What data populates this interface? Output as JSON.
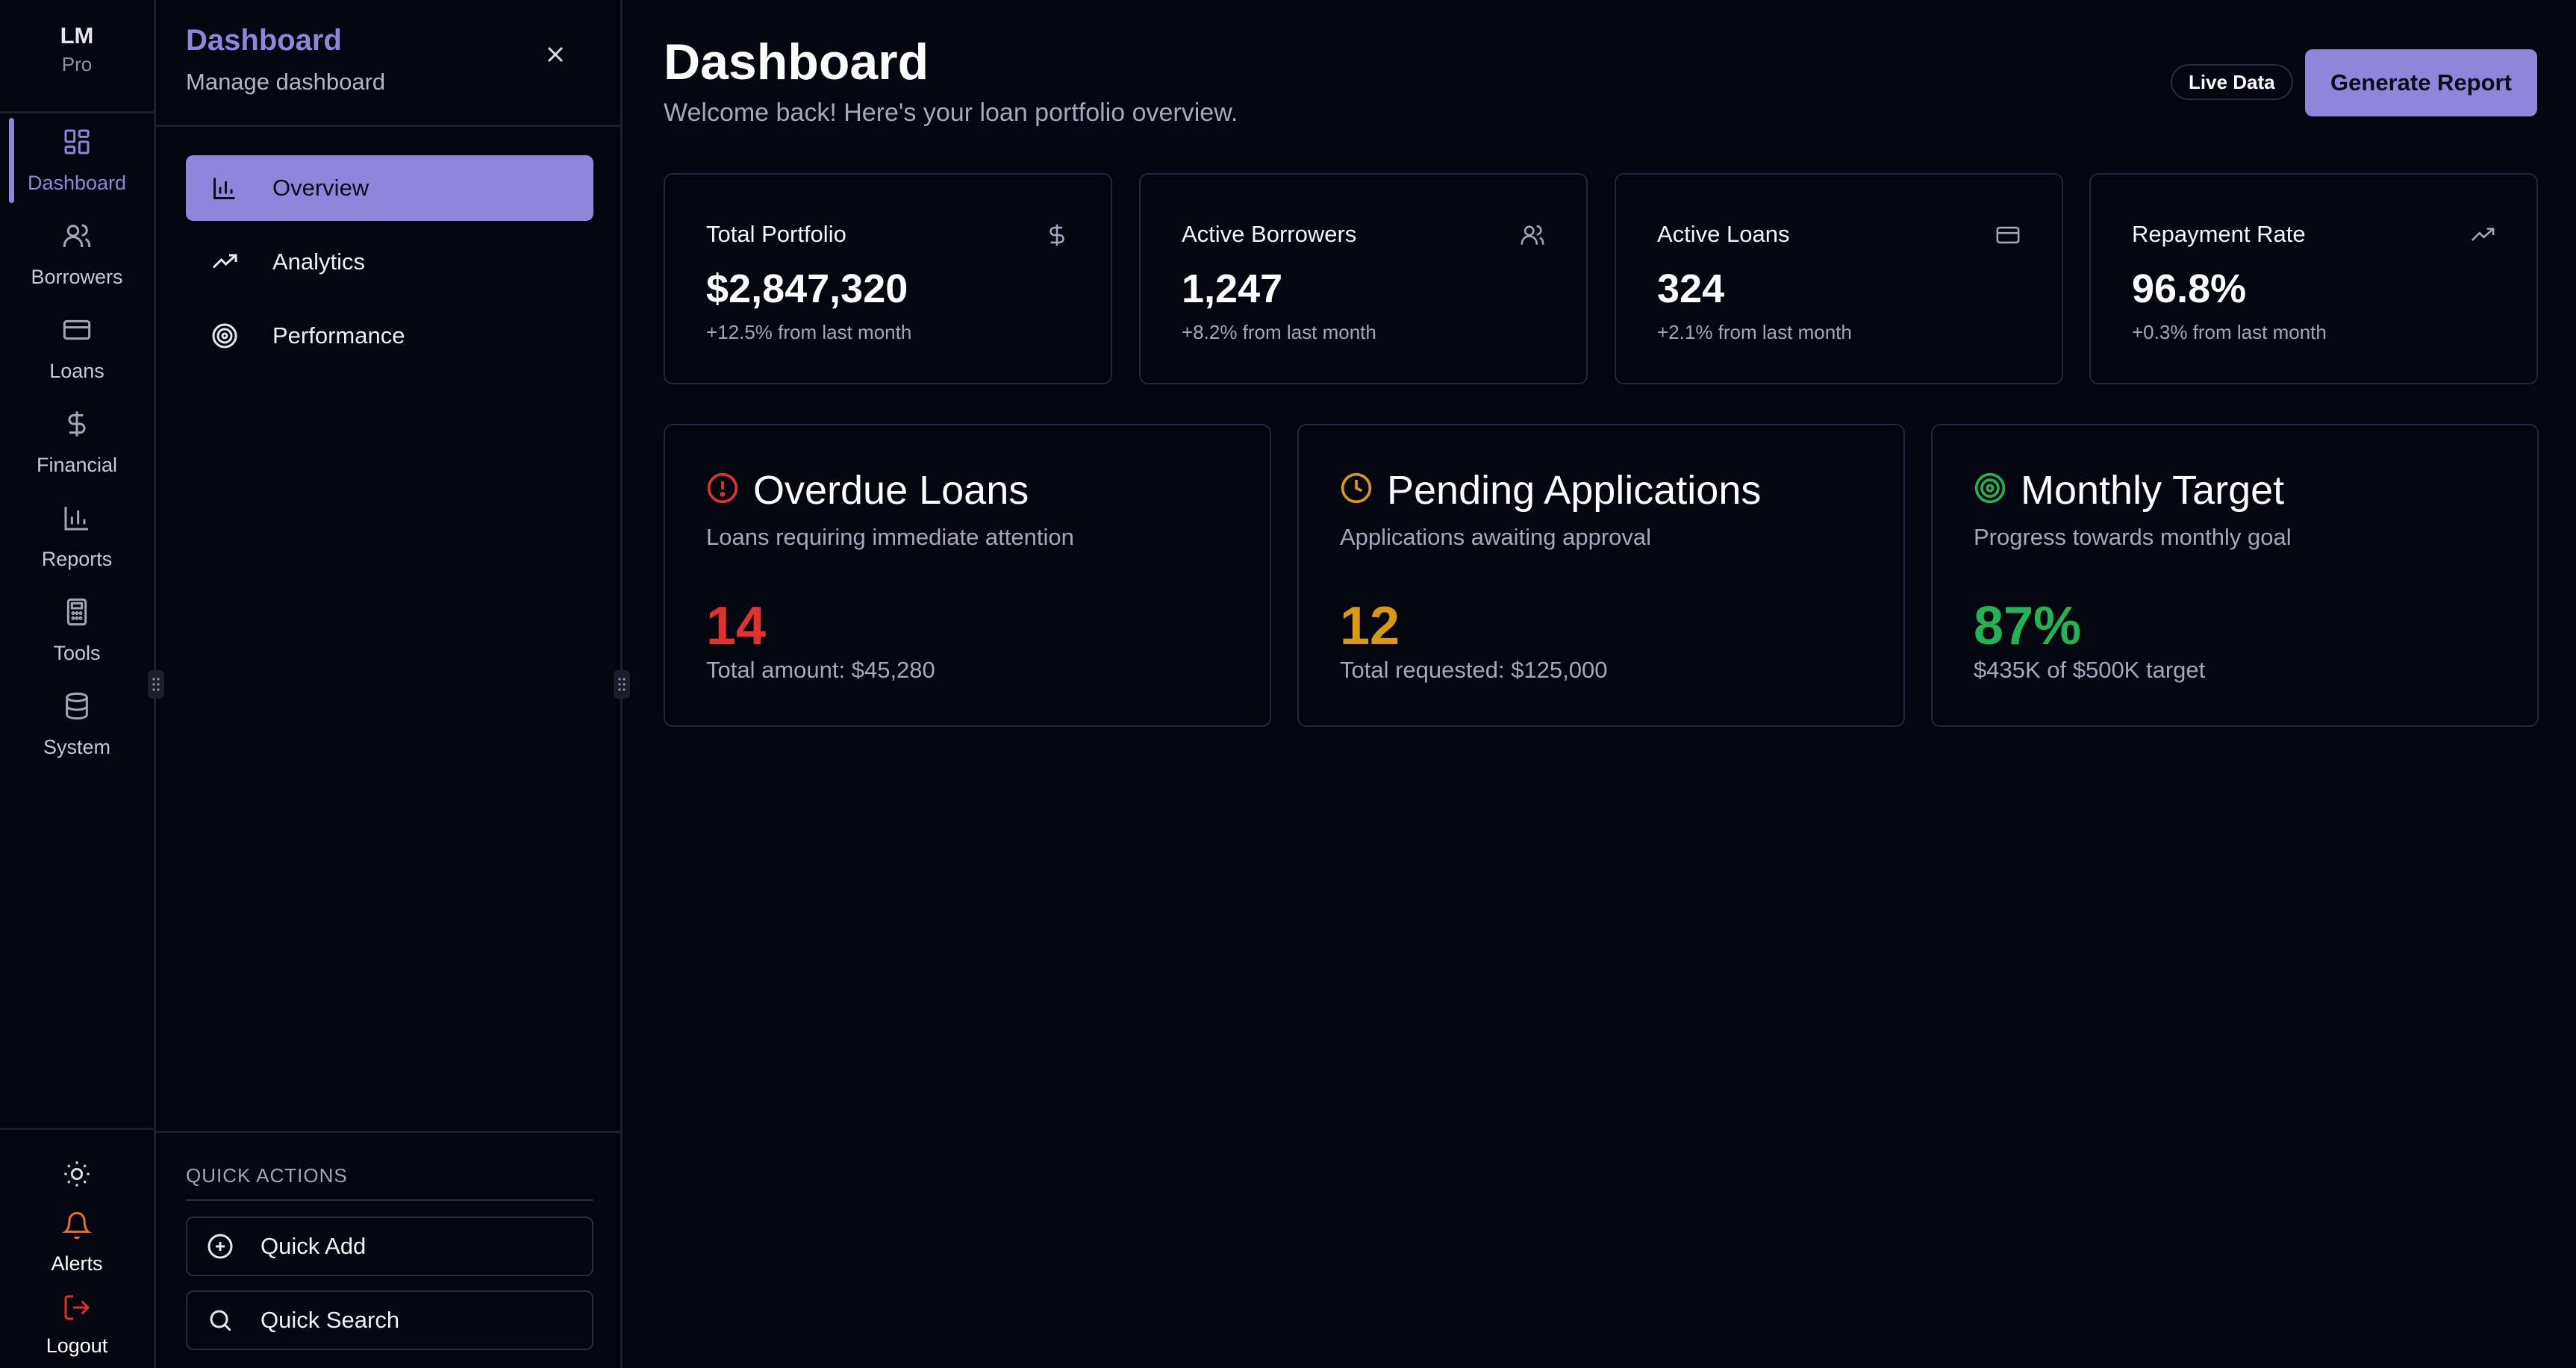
{
  "brand": {
    "logo": "LM",
    "tier": "Pro"
  },
  "rail": {
    "items": [
      {
        "label": "Dashboard",
        "icon": "grid-icon",
        "active": true
      },
      {
        "label": "Borrowers",
        "icon": "users-icon"
      },
      {
        "label": "Loans",
        "icon": "credit-card-icon"
      },
      {
        "label": "Financial",
        "icon": "dollar-icon"
      },
      {
        "label": "Reports",
        "icon": "bar-chart-icon"
      },
      {
        "label": "Tools",
        "icon": "calculator-icon"
      },
      {
        "label": "System",
        "icon": "database-icon"
      }
    ],
    "bottom": {
      "theme_icon": "sun-icon",
      "alerts_label": "Alerts",
      "logout_label": "Logout"
    }
  },
  "panel": {
    "title": "Dashboard",
    "subtitle": "Manage dashboard",
    "nav": [
      {
        "label": "Overview",
        "icon": "bar-chart-icon",
        "active": true
      },
      {
        "label": "Analytics",
        "icon": "trending-up-icon"
      },
      {
        "label": "Performance",
        "icon": "target-icon"
      }
    ],
    "quick_actions": {
      "heading": "QUICK ACTIONS",
      "add_label": "Quick Add",
      "search_label": "Quick Search"
    }
  },
  "header": {
    "title": "Dashboard",
    "subtitle": "Welcome back! Here's your loan portfolio overview.",
    "live_badge": "Live Data",
    "report_button": "Generate Report"
  },
  "stats": [
    {
      "title": "Total Portfolio",
      "value": "$2,847,320",
      "delta": "+12.5% from last month",
      "icon": "dollar-icon"
    },
    {
      "title": "Active Borrowers",
      "value": "1,247",
      "delta": "+8.2% from last month",
      "icon": "users-icon"
    },
    {
      "title": "Active Loans",
      "value": "324",
      "delta": "+2.1% from last month",
      "icon": "credit-card-icon"
    },
    {
      "title": "Repayment Rate",
      "value": "96.8%",
      "delta": "+0.3% from last month",
      "icon": "trending-up-icon"
    }
  ],
  "alerts": [
    {
      "title": "Overdue Loans",
      "desc": "Loans requiring immediate attention",
      "value": "14",
      "foot": "Total amount: $45,280",
      "icon": "alert-circle-icon",
      "color": "#e2312f"
    },
    {
      "title": "Pending Applications",
      "desc": "Applications awaiting approval",
      "value": "12",
      "foot": "Total requested: $125,000",
      "icon": "clock-icon",
      "color": "#d99a12"
    },
    {
      "title": "Monthly Target",
      "desc": "Progress towards monthly goal",
      "value": "87%",
      "foot": "$435K of $500K target",
      "icon": "target-icon",
      "color": "#22b352"
    }
  ],
  "colors": {
    "accent": "#8d86db",
    "background": "#03050f",
    "border": "#24273a",
    "alert_orange": "#e8702a"
  }
}
